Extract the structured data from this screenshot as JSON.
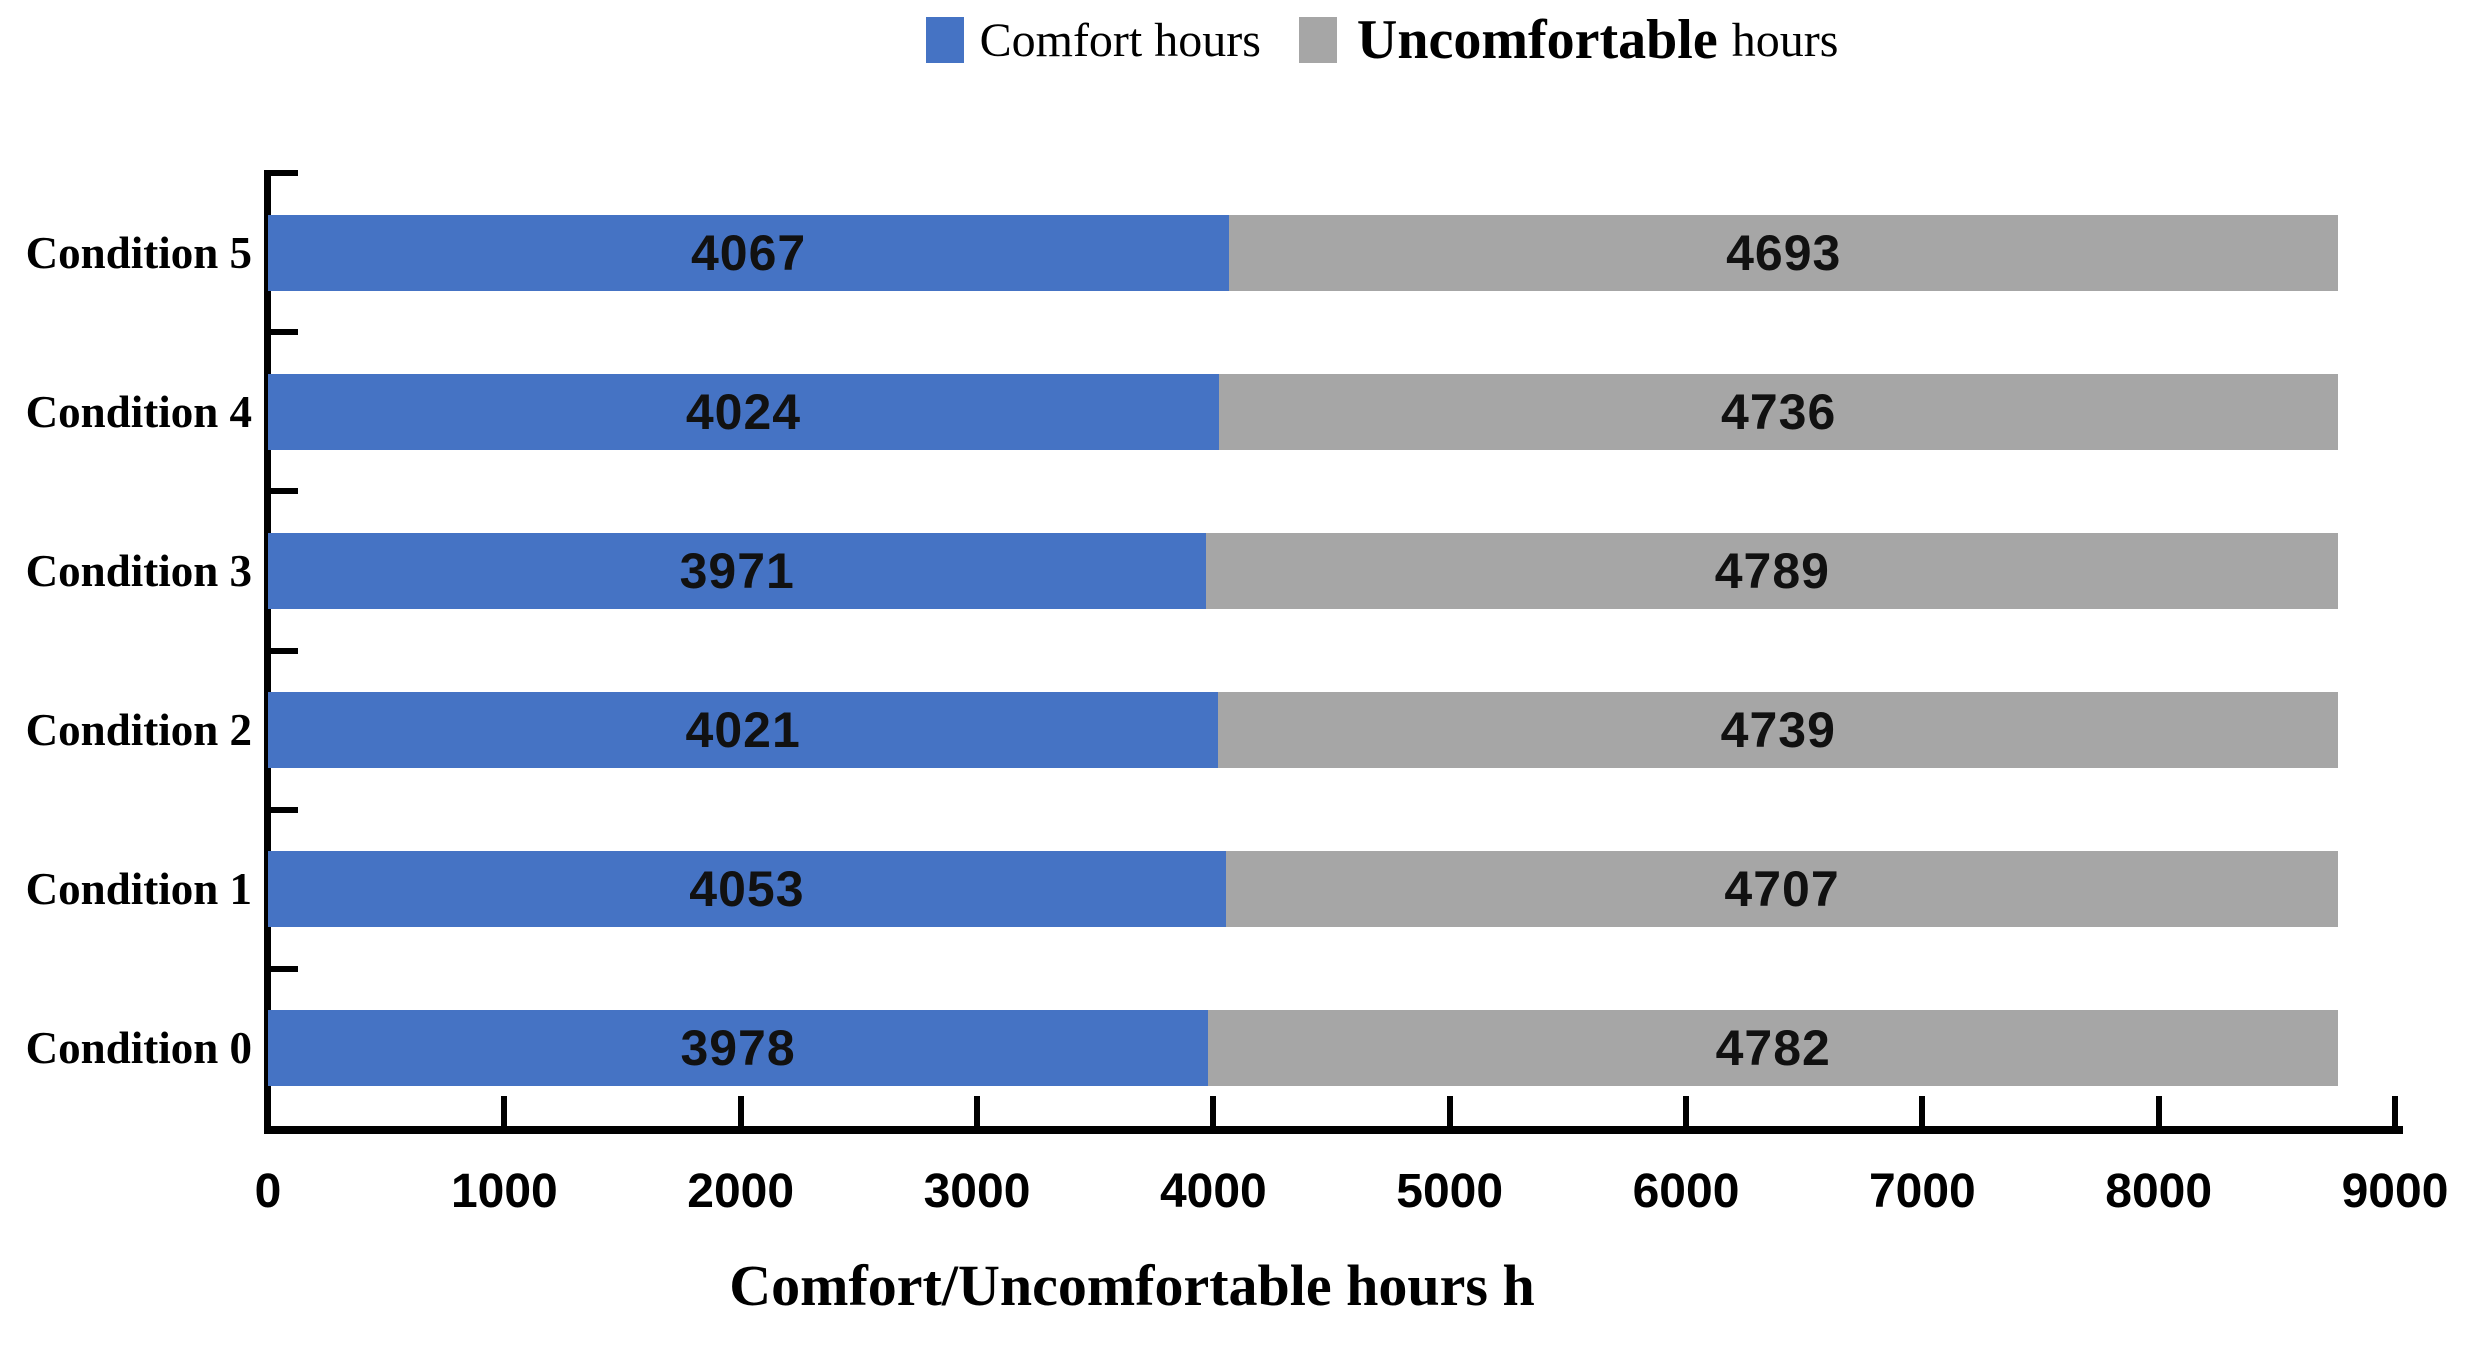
{
  "legend": {
    "items": [
      {
        "label": "Comfort hours",
        "color": "#4573C4"
      },
      {
        "label_main": "Uncomfortable",
        "label_suffix": "hours",
        "color": "#A6A6A6"
      }
    ]
  },
  "chart_data": {
    "type": "bar",
    "orientation": "horizontal",
    "stacked": true,
    "title": "",
    "xlabel": "Comfort/Uncomfortable hours h",
    "ylabel": "",
    "categories": [
      "Condition 5",
      "Condition 4",
      "Condition 3",
      "Condition 2",
      "Condition 1",
      "Condition 0"
    ],
    "series": [
      {
        "name": "Comfort hours",
        "color": "#4573C4",
        "values": [
          4067,
          4024,
          3971,
          4021,
          4053,
          3978
        ]
      },
      {
        "name": "Uncomfortable hours",
        "color": "#A6A6A6",
        "values": [
          4693,
          4736,
          4789,
          4739,
          4707,
          4782
        ]
      }
    ],
    "totals": [
      8760,
      8760,
      8760,
      8760,
      8760,
      8760
    ],
    "xlim": [
      0,
      9000
    ],
    "x_ticks": [
      0,
      1000,
      2000,
      3000,
      4000,
      5000,
      6000,
      7000,
      8000,
      9000
    ],
    "grid": false,
    "legend_position": "top",
    "value_labels": true,
    "text_color": "#000000",
    "axis_color": "#000000"
  }
}
